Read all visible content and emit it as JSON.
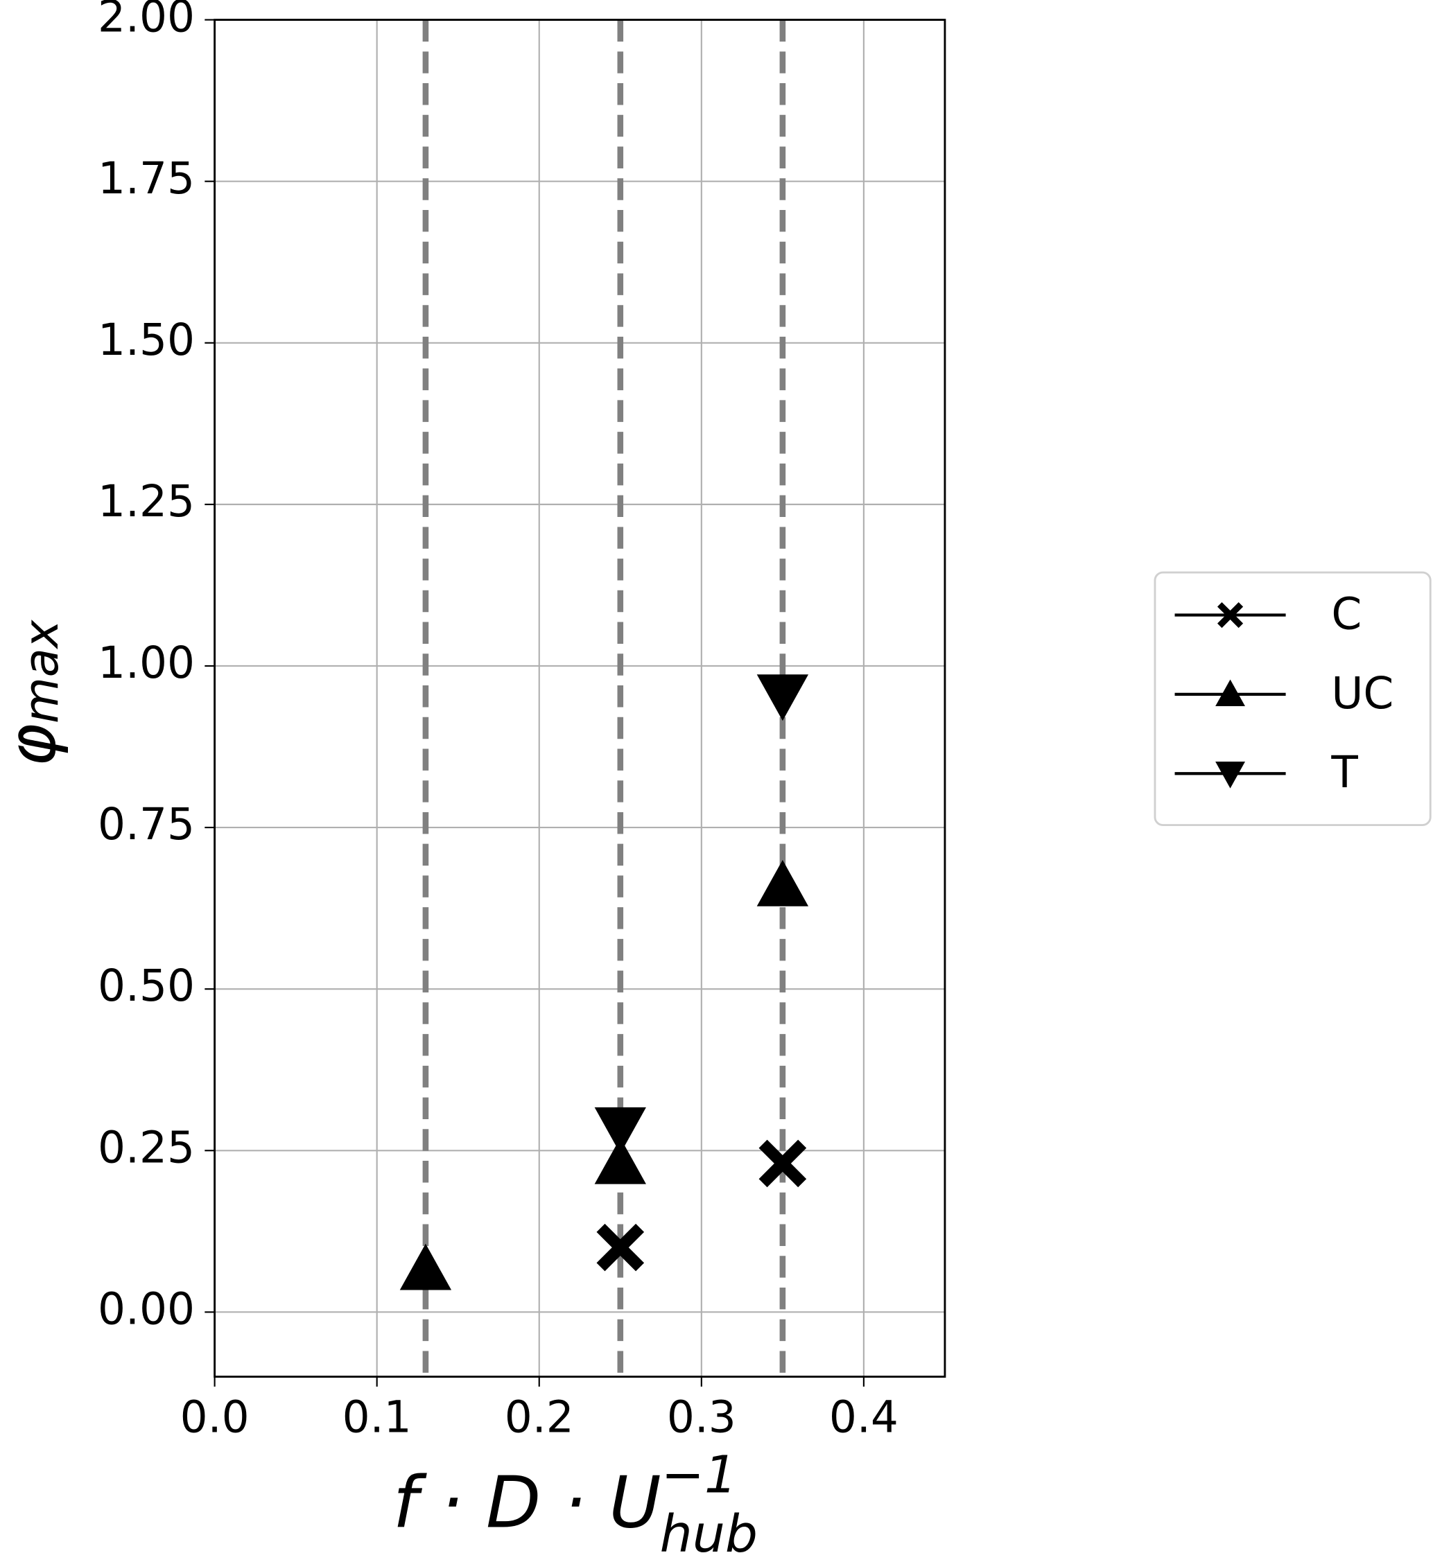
{
  "chart_data": {
    "type": "scatter",
    "xlabel": {
      "main": "f · D · U",
      "sup": "−1",
      "sub": "hub"
    },
    "ylabel": {
      "main": "φ",
      "sub": "max"
    },
    "xlim": [
      0,
      0.45
    ],
    "ylim": [
      -0.1,
      2.0
    ],
    "xticks": [
      {
        "value": 0,
        "label": "0.0"
      },
      0.1,
      0.2,
      0.3,
      0.4
    ],
    "yticks": [
      {
        "value": 0,
        "label": "0.00"
      },
      0.25,
      {
        "value": 0.5,
        "label": "0.50"
      },
      0.75,
      {
        "value": 1,
        "label": "1.00"
      },
      1.25,
      {
        "value": 1.5,
        "label": "1.50"
      },
      1.75,
      {
        "value": 2,
        "label": "2.00"
      }
    ],
    "grid": true,
    "vlines": [
      0.13,
      0.25,
      0.35
    ],
    "vline_color": "#808080",
    "legend": "right",
    "series": [
      {
        "name": "C",
        "marker": "X",
        "color": "#000000",
        "x": [
          0.25,
          0.35
        ],
        "values": [
          0.1,
          0.23
        ]
      },
      {
        "name": "UC",
        "marker": "^",
        "color": "#000000",
        "x": [
          0.13,
          0.25,
          0.35
        ],
        "values": [
          0.066,
          0.23,
          0.66
        ]
      },
      {
        "name": "T",
        "marker": "v",
        "color": "#000000",
        "x": [
          0.25,
          0.35
        ],
        "values": [
          0.285,
          0.955
        ]
      }
    ]
  }
}
